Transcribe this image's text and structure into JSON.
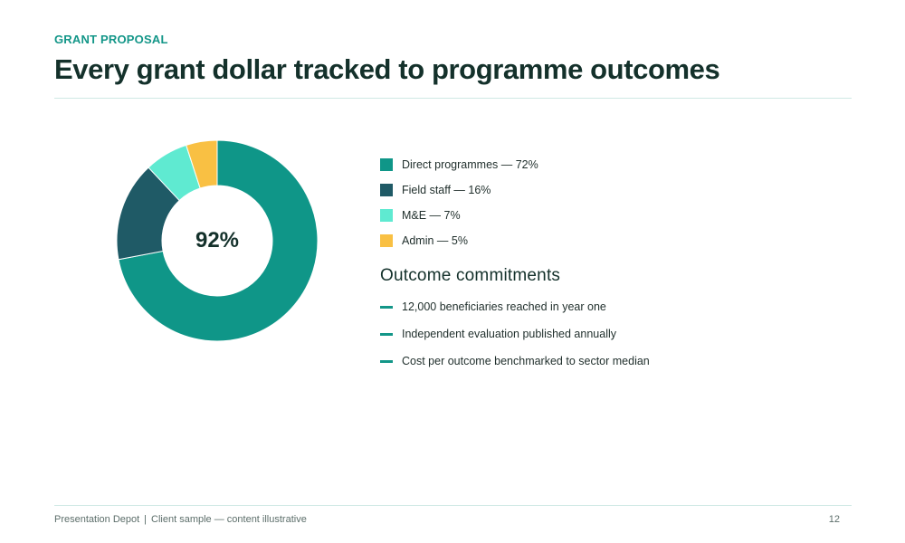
{
  "eyebrow": "GRANT PROPOSAL",
  "title": "Every grant dollar tracked to programme outcomes",
  "chart_data": {
    "type": "pie",
    "donut": true,
    "center_label": "92%",
    "slices": [
      {
        "name": "Direct programmes",
        "value": 72,
        "color": "#0f9688"
      },
      {
        "name": "Field staff",
        "value": 16,
        "color": "#1f5a66"
      },
      {
        "name": "M&E",
        "value": 7,
        "color": "#5fead1"
      },
      {
        "name": "Admin",
        "value": 5,
        "color": "#f9c043"
      }
    ]
  },
  "legend": [
    {
      "label": "Direct programmes — 72%",
      "color": "#0f9688"
    },
    {
      "label": "Field staff — 16%",
      "color": "#1f5a66"
    },
    {
      "label": "M&E — 7%",
      "color": "#5fead1"
    },
    {
      "label": "Admin — 5%",
      "color": "#f9c043"
    }
  ],
  "commitments": {
    "heading": "Outcome commitments",
    "items": [
      "12,000 beneficiaries reached in year one",
      "Independent evaluation published annually",
      "Cost per outcome benchmarked to sector median"
    ],
    "dash_color": "#139688"
  },
  "footer": {
    "brand": "Presentation Depot",
    "separator": "|",
    "note": "Client sample — content illustrative",
    "page_number": "12"
  }
}
